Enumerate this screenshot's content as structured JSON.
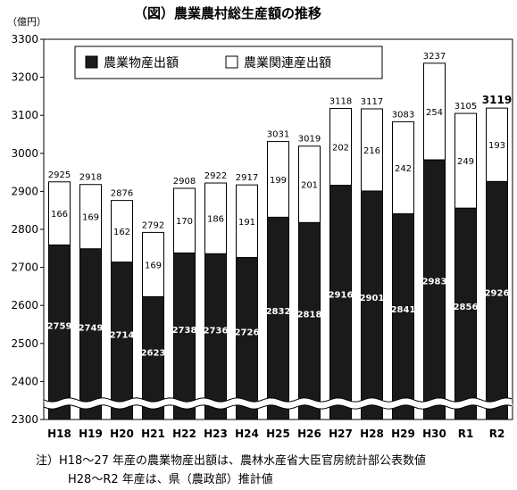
{
  "chart_data": {
    "type": "bar",
    "stacked": true,
    "title": "（図）農業農村総生産額の推移",
    "unit_label": "（億円）",
    "categories": [
      "H18",
      "H19",
      "H20",
      "H21",
      "H22",
      "H23",
      "H24",
      "H25",
      "H26",
      "H27",
      "H28",
      "H29",
      "H30",
      "R1",
      "R2"
    ],
    "series": [
      {
        "name": "農業物産出額",
        "color": "#1a1a1a",
        "values": [
          2759,
          2749,
          2714,
          2623,
          2738,
          2736,
          2726,
          2832,
          2818,
          2916,
          2901,
          2841,
          2983,
          2856,
          2926
        ]
      },
      {
        "name": "農業関連産出額",
        "color": "#ffffff",
        "values": [
          166,
          169,
          162,
          169,
          170,
          186,
          191,
          199,
          201,
          202,
          216,
          242,
          254,
          249,
          193
        ]
      }
    ],
    "totals": [
      2925,
      2918,
      2876,
      2792,
      2908,
      2922,
      2917,
      3031,
      3019,
      3118,
      3117,
      3083,
      3237,
      3105,
      3119
    ],
    "ylim": [
      2300,
      3300
    ],
    "yticks": [
      2300,
      2400,
      2500,
      2600,
      2700,
      2800,
      2900,
      3000,
      3100,
      3200,
      3300
    ],
    "axis_break": true,
    "grid": false,
    "legend_position": "top",
    "notes": [
      "注）H18～27 年産の農業物産出額は、農林水産省大臣官房統計部公表数値",
      "H28～R2 年産は、県（農政部）推計値"
    ]
  }
}
